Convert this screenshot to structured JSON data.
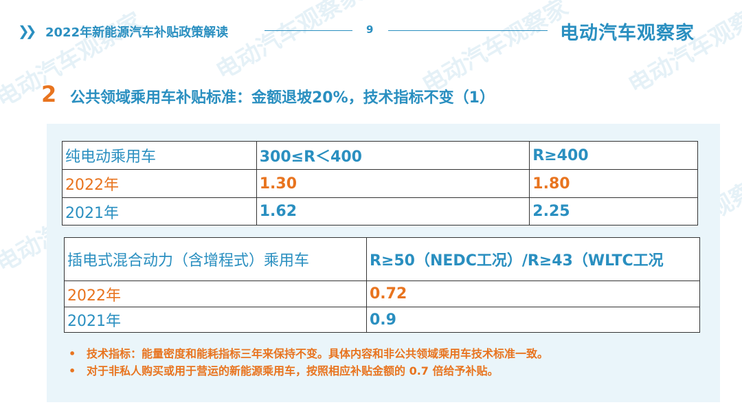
{
  "header": {
    "title": "2022年新能源汽车补贴政策解读",
    "page": "9",
    "logo": "电动汽车观察家",
    "chevron_icon": "double-chevron-right"
  },
  "section": {
    "number": "2",
    "title": "公共领域乘用车补贴标准：金额退坡20%，技术指标不变（1）"
  },
  "table1": {
    "headers": [
      "纯电动乘用车",
      "300≤R＜400",
      "R≥400"
    ],
    "rows": [
      [
        "2022年",
        "1.30",
        "1.80"
      ],
      [
        "2021年",
        "1.62",
        "2.25"
      ]
    ]
  },
  "table2": {
    "headers": [
      "插电式混合动力（含增程式）乘用车",
      "R≥50（NEDC工况）/R≥43（WLTC工况"
    ],
    "rows": [
      [
        "2022年",
        "0.72"
      ],
      [
        "2021年",
        "0.9"
      ]
    ]
  },
  "notes": [
    "技术指标：能量密度和能耗指标三年来保持不变。具体内容和非公共领域乘用车技术标准一致。",
    "对于非私人购买或用于营运的新能源乘用车，按照相应补贴金额的 0.7 倍给予补贴。"
  ],
  "watermark": "电动汽车观察家",
  "colors": {
    "blue": "#2a8fc0",
    "orange": "#e8741f",
    "panel": "#eaf5fa"
  }
}
